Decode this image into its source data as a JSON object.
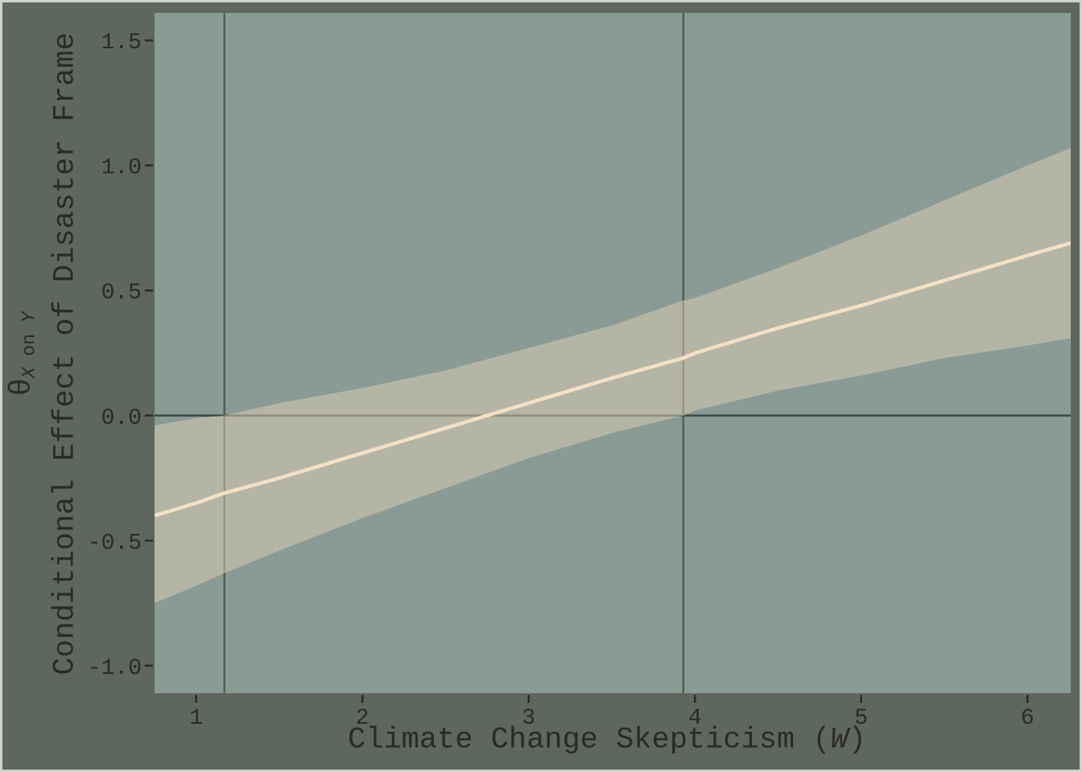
{
  "colors": {
    "figure_background": "#5e675d",
    "plot_background": "#8a9b96",
    "ci_band_fill": "#e0ceb7",
    "ci_band_alpha": 0.51,
    "effect_line": "#f2e1c5",
    "zero_line": "#3f4a41",
    "jn_vertical_line": "#525d53",
    "tick_and_text": "#2b2a25",
    "frame_border": "#cdd2cc"
  },
  "axis_titles": {
    "x_prefix": "Climate Change Skepticism (",
    "x_moderator_symbol": "W",
    "x_suffix": ")",
    "y_line1_theta": "θ",
    "y_line1_sub_x": "X",
    "y_line1_sub_on": " on ",
    "y_line1_sub_y": "Y",
    "y_line2": "Conditional Effect of Disaster Frame"
  },
  "chart_data": {
    "type": "line",
    "title": "",
    "xlabel": "Climate Change Skepticism (W)",
    "ylabel": "θ_X on Y  Conditional Effect of Disaster Frame",
    "xlim": [
      0.75,
      6.26
    ],
    "ylim": [
      -1.11,
      1.61
    ],
    "grid": false,
    "legend_position": "none",
    "x_ticks": [
      1,
      2,
      3,
      4,
      5,
      6
    ],
    "x_tick_labels": [
      "1",
      "2",
      "3",
      "4",
      "5",
      "6"
    ],
    "y_ticks": [
      -1.0,
      -0.5,
      0.0,
      0.5,
      1.0,
      1.5
    ],
    "y_tick_labels": [
      "-1.0",
      "-0.5",
      "0.0",
      "0.5",
      "1.0",
      "1.5"
    ],
    "series": [
      {
        "name": "conditional_effect_of_disaster_frame",
        "x": [
          0.75,
          1.0,
          1.17,
          1.5,
          2.0,
          2.5,
          3.0,
          3.5,
          3.93,
          4.0,
          4.5,
          5.0,
          5.5,
          6.0,
          6.26
        ],
        "y": [
          -0.4,
          -0.35,
          -0.31,
          -0.25,
          -0.15,
          -0.05,
          0.05,
          0.15,
          0.23,
          0.25,
          0.35,
          0.44,
          0.54,
          0.64,
          0.69
        ]
      }
    ],
    "confidence_band": {
      "name": "95_percent_ci",
      "x": [
        0.75,
        1.0,
        1.17,
        1.5,
        2.0,
        2.5,
        3.0,
        3.5,
        3.93,
        4.0,
        4.5,
        5.0,
        5.5,
        6.0,
        6.26
      ],
      "upper": [
        -0.04,
        -0.01,
        0.0,
        0.05,
        0.11,
        0.18,
        0.27,
        0.36,
        0.46,
        0.47,
        0.59,
        0.72,
        0.86,
        1.0,
        1.07
      ],
      "lower": [
        -0.75,
        -0.68,
        -0.63,
        -0.54,
        -0.41,
        -0.29,
        -0.17,
        -0.07,
        0.0,
        0.02,
        0.1,
        0.16,
        0.23,
        0.28,
        0.31
      ]
    },
    "reference_lines": {
      "horizontal_y": 0.0,
      "vertical_x": [
        1.17,
        3.93
      ]
    }
  }
}
